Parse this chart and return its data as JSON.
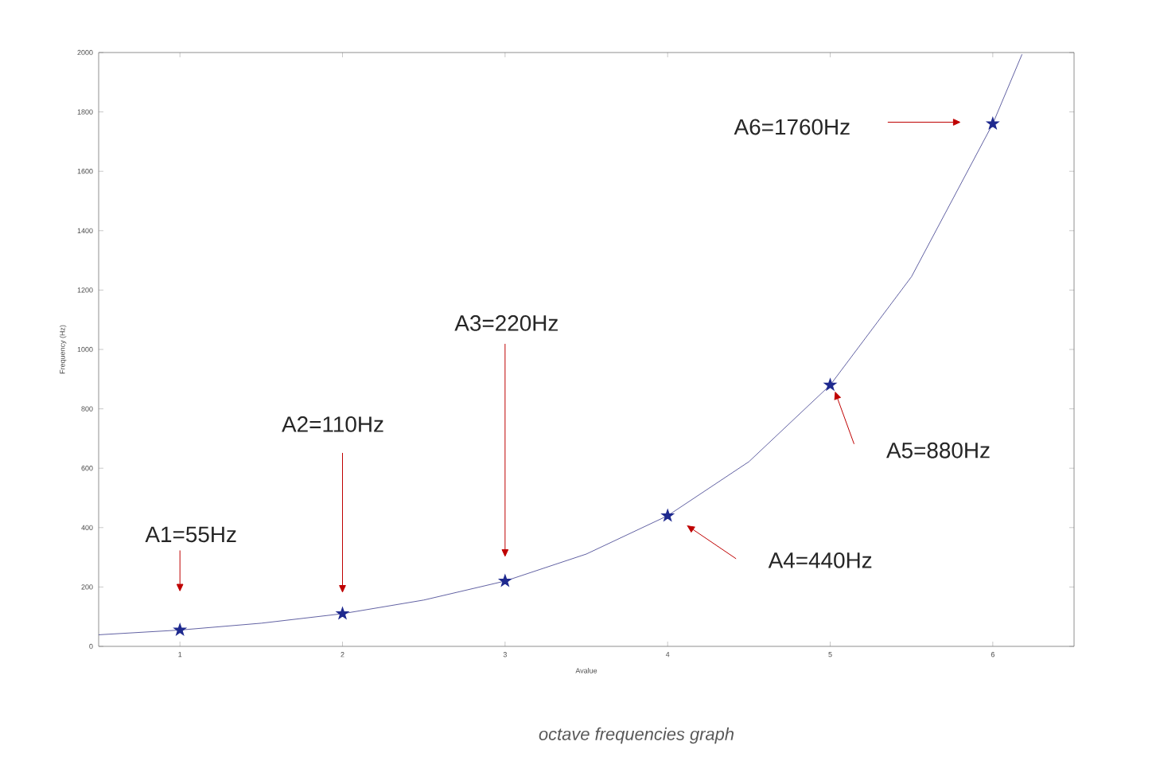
{
  "chart_data": {
    "type": "line",
    "xlabel": "Avalue",
    "ylabel": "Frequency (Hz)",
    "xlim": [
      0.5,
      6.5
    ],
    "xticks": [
      1,
      2,
      3,
      4,
      5,
      6
    ],
    "ylim": [
      0,
      2000
    ],
    "yticks": [
      0,
      200,
      400,
      600,
      800,
      1000,
      1200,
      1400,
      1600,
      1800,
      2000
    ],
    "grid": false,
    "line_style": "solid",
    "series": [
      {
        "color": "#3a3a8c",
        "marker": "none",
        "x": [
          0.5,
          1,
          1.5,
          2,
          2.5,
          3,
          3.5,
          4,
          4.5,
          5,
          5.5,
          6,
          6.18
        ],
        "values": [
          39,
          55,
          78,
          110,
          156,
          220,
          311,
          440,
          622,
          880,
          1245,
          1760,
          1994
        ]
      },
      {
        "type": "scatter",
        "color": "#1f2a8f",
        "marker": "star",
        "x": [
          1,
          2,
          3,
          4,
          5,
          6
        ],
        "values": [
          55,
          110,
          220,
          440,
          880,
          1760
        ]
      }
    ],
    "annotations": [
      "A1=55Hz",
      "A2=110Hz",
      "A3=220Hz",
      "A4=440Hz",
      "A5=880Hz",
      "A6=1760Hz",
      "octave frequencies graph"
    ]
  }
}
